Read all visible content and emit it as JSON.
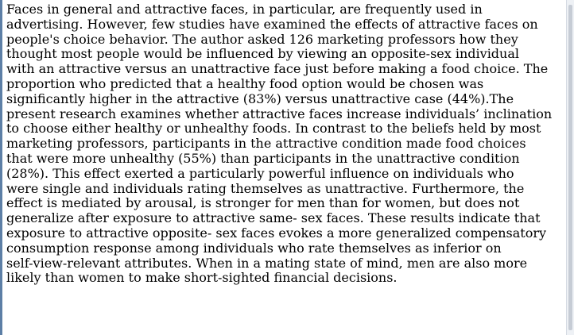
{
  "document": {
    "lines": [
      "Faces in general and attractive faces, in particular, are frequently used in",
      "advertising.  However, few studies have examined the effects of attractive faces on",
      "people's choice behavior. The author asked 126 marketing professors how they",
      "thought most people would be influenced by viewing an opposite-sex individual",
      "with an attractive versus an unattractive face just before making a food choice. The",
      "proportion who predicted that a healthy food option would be chosen was",
      "significantly higher in the attractive (83%) versus unattractive case (44%).The",
      "present research examines whether attractive faces increase individuals’ inclination",
      "to choose either healthy or unhealthy foods. In contrast to the beliefs held by most",
      "marketing professors, participants in the attractive condition made food choices",
      "that were more unhealthy (55%) than participants in the unattractive condition",
      "(28%). This effect exerted a particularly powerful influence on individuals  who",
      "were single and individuals  rating themselves as unattractive. Furthermore, the",
      "effect is mediated  by arousal, is stronger for men than for women, but does not",
      "generalize after exposure to attractive same- sex faces. These results indicate that",
      "exposure to attractive opposite- sex faces evokes a more generalized compensatory",
      "consumption response among individuals  who rate themselves as inferior on",
      "self-view-relevant  attributes. When in a mating state of mind, men are also more",
      "likely than women to make short-sighted financial  decisions."
    ]
  },
  "colors": {
    "text": "#000000",
    "background": "#ffffff",
    "frame_edge": "#5d7fa6"
  }
}
